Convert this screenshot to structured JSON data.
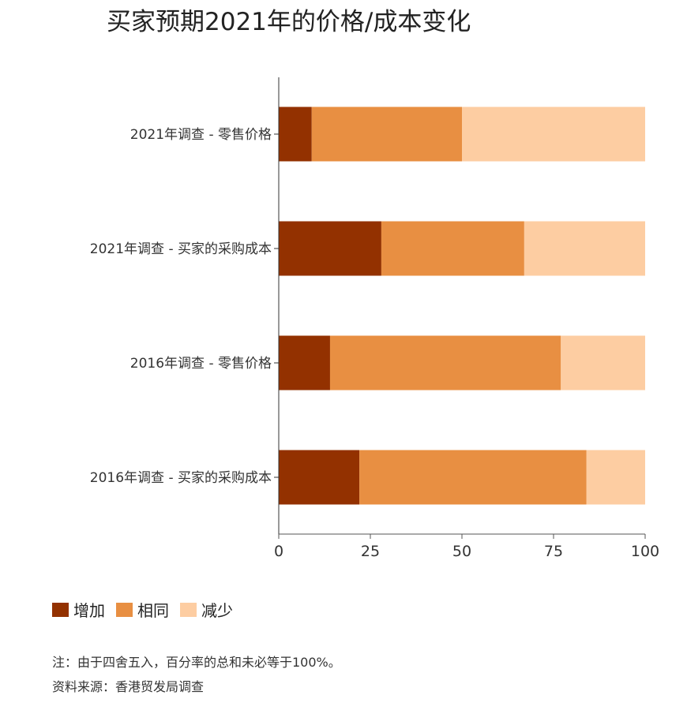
{
  "chart_data": {
    "type": "bar",
    "orientation": "horizontal",
    "stacked": true,
    "title": "买家预期2021年的价格/成本变化",
    "categories": [
      "2021年调查 - 零售价格",
      "2021年调查 - 买家的采购成本",
      "2016年调查 - 零售价格",
      "2016年调查 - 买家的采购成本"
    ],
    "series": [
      {
        "name": "增加",
        "color": "#933100",
        "values": [
          9,
          28,
          14,
          22
        ]
      },
      {
        "name": "相同",
        "color": "#e88f42",
        "values": [
          41,
          39,
          63,
          62
        ]
      },
      {
        "name": "减少",
        "color": "#fdcda2",
        "values": [
          50,
          33,
          23,
          16
        ]
      }
    ],
    "xlim": [
      0,
      100
    ],
    "xticks": [
      0,
      25,
      50,
      75,
      100
    ],
    "xlabel": "",
    "ylabel": "",
    "grid": false,
    "legend_position": "bottom-left"
  },
  "notes": {
    "rounding": "注：由于四舍五入，百分率的总和未必等于100%。",
    "source": "资料来源：香港贸发局调查"
  }
}
